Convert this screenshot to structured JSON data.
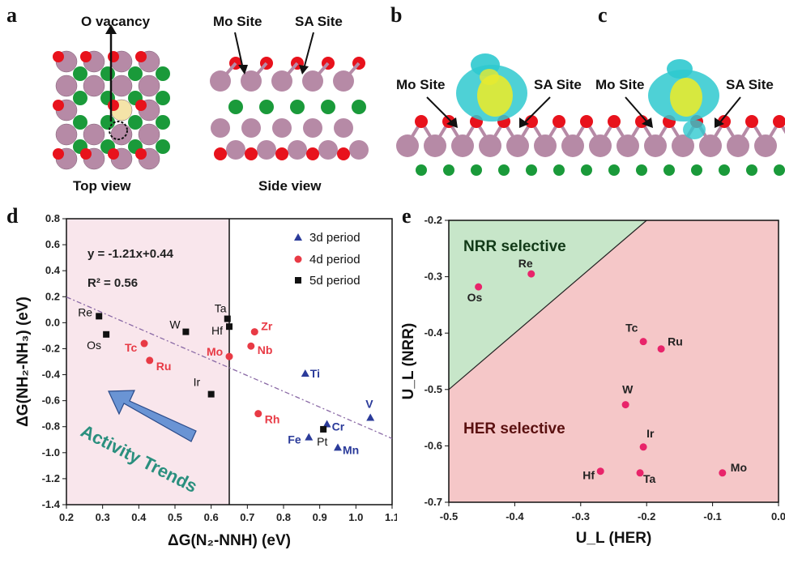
{
  "panels": {
    "a": {
      "letter": "a",
      "o_vacancy": "O vacancy",
      "top_view": "Top view",
      "mo_site": "Mo Site",
      "sa_site": "SA Site",
      "side_view": "Side view"
    },
    "b": {
      "letter": "b",
      "mo_site": "Mo Site",
      "sa_site": "SA Site"
    },
    "c": {
      "letter": "c",
      "mo_site": "Mo Site",
      "sa_site": "SA Site"
    },
    "d": {
      "letter": "d",
      "equation": "y = -1.21x+0.44",
      "r2": "R² = 0.56",
      "activity": "Activity Trends"
    },
    "e": {
      "letter": "e",
      "region_top": "NRR selective",
      "region_bottom": "HER selective"
    }
  },
  "colors": {
    "o_atom": "#e8121c",
    "mo_atom": "#b68aa6",
    "s_atom": "#1a9a3a",
    "sa_atom": "#f4e3a8",
    "orbital_cyan": "#2fc9cf",
    "orbital_yellow": "#e7ea2f",
    "period3": "#2b3b9a",
    "period4": "#e83a45",
    "period5": "#111111",
    "nrr_region": "#c7e6c9",
    "her_region": "#f5c7c8",
    "d_left_shade": "#f9e6ec",
    "arrow_fill": "#6a94d4",
    "activity_text": "#2a8f7e",
    "e_points": "#e8246a"
  },
  "chart_data": [
    {
      "type": "scatter",
      "panel": "d",
      "xlabel": "ΔG(N₂-NNH) (eV)",
      "ylabel": "ΔG(NH₂-NH₃) (eV)",
      "xlim": [
        0.2,
        1.1
      ],
      "ylim": [
        -1.4,
        0.8
      ],
      "x_ticks": [
        "0.2",
        "0.3",
        "0.4",
        "0.5",
        "0.6",
        "0.7",
        "0.8",
        "0.9",
        "1.0",
        "1.1"
      ],
      "y_ticks": [
        "0.8",
        "0.6",
        "0.4",
        "0.2",
        "0.0",
        "-0.2",
        "-0.4",
        "-0.6",
        "-0.8",
        "-1.0",
        "-1.2",
        "-1.4"
      ],
      "fit": {
        "slope": -1.21,
        "intercept": 0.44
      },
      "vertical_line_x": 0.65,
      "legend": [
        "3d period",
        "4d period",
        "5d period"
      ],
      "series": [
        {
          "name": "3d period",
          "marker": "triangle",
          "points": [
            {
              "label": "Ti",
              "x": 0.86,
              "y": -0.39
            },
            {
              "label": "V",
              "x": 1.04,
              "y": -0.73
            },
            {
              "label": "Fe",
              "x": 0.87,
              "y": -0.88
            },
            {
              "label": "Cr",
              "x": 0.92,
              "y": -0.78
            },
            {
              "label": "Mn",
              "x": 0.95,
              "y": -0.96
            }
          ]
        },
        {
          "name": "4d period",
          "marker": "circle",
          "points": [
            {
              "label": "Zr",
              "x": 0.72,
              "y": -0.07
            },
            {
              "label": "Nb",
              "x": 0.71,
              "y": -0.18
            },
            {
              "label": "Mo",
              "x": 0.65,
              "y": -0.26
            },
            {
              "label": "Tc",
              "x": 0.415,
              "y": -0.16
            },
            {
              "label": "Ru",
              "x": 0.43,
              "y": -0.29
            },
            {
              "label": "Rh",
              "x": 0.73,
              "y": -0.7
            }
          ]
        },
        {
          "name": "5d period",
          "marker": "square",
          "points": [
            {
              "label": "Re",
              "x": 0.29,
              "y": 0.05
            },
            {
              "label": "Os",
              "x": 0.31,
              "y": -0.09
            },
            {
              "label": "W",
              "x": 0.53,
              "y": -0.07
            },
            {
              "label": "Ta",
              "x": 0.645,
              "y": 0.03
            },
            {
              "label": "Hf",
              "x": 0.65,
              "y": -0.03
            },
            {
              "label": "Ir",
              "x": 0.6,
              "y": -0.55
            },
            {
              "label": "Pt",
              "x": 0.91,
              "y": -0.82
            }
          ]
        }
      ]
    },
    {
      "type": "scatter",
      "panel": "e",
      "xlabel": "U_L (HER)",
      "ylabel": "U_L (NRR)",
      "xlim": [
        -0.5,
        0.0
      ],
      "ylim": [
        -0.7,
        -0.2
      ],
      "x_ticks": [
        "-0.5",
        "-0.4",
        "-0.3",
        "-0.2",
        "-0.1",
        "0.0"
      ],
      "y_ticks": [
        "-0.2",
        "-0.3",
        "-0.4",
        "-0.5",
        "-0.6",
        "-0.7"
      ],
      "boundary": [
        [
          -0.5,
          -0.5
        ],
        [
          -0.2,
          -0.2
        ]
      ],
      "points": [
        {
          "label": "Os",
          "x": -0.455,
          "y": -0.318
        },
        {
          "label": "Re",
          "x": -0.375,
          "y": -0.295
        },
        {
          "label": "Tc",
          "x": -0.205,
          "y": -0.415
        },
        {
          "label": "Ru",
          "x": -0.178,
          "y": -0.428
        },
        {
          "label": "W",
          "x": -0.232,
          "y": -0.527
        },
        {
          "label": "Ir",
          "x": -0.205,
          "y": -0.602
        },
        {
          "label": "Hf",
          "x": -0.27,
          "y": -0.645
        },
        {
          "label": "Ta",
          "x": -0.21,
          "y": -0.648
        },
        {
          "label": "Mo",
          "x": -0.085,
          "y": -0.648
        }
      ]
    }
  ]
}
